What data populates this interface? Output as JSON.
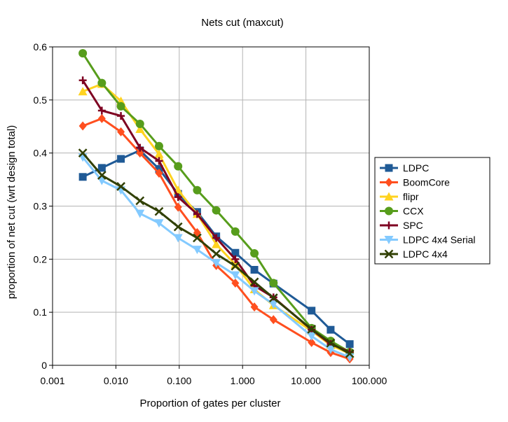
{
  "chart_data": {
    "type": "line",
    "title": "Nets cut (maxcut)",
    "xlabel": "Proportion of gates per cluster",
    "ylabel": "proportion of net cut (wrt design total)",
    "x_scale": "log",
    "xlim": [
      0.001,
      100
    ],
    "ylim": [
      0,
      0.6
    ],
    "x_ticks": [
      0.001,
      0.01,
      0.1,
      1,
      10,
      100
    ],
    "x_tick_labels": [
      "0.001",
      "0.010",
      "0.100",
      "1.000",
      "10.000",
      "100.000"
    ],
    "y_ticks": [
      0,
      0.1,
      0.2,
      0.3,
      0.4,
      0.5,
      0.6
    ],
    "y_tick_labels": [
      "0",
      "0.1",
      "0.2",
      "0.3",
      "0.4",
      "0.5",
      "0.6"
    ],
    "grid": true,
    "legend_position": "right",
    "series": [
      {
        "name": "LDPC",
        "color": "#1f5a96",
        "marker": "square",
        "x": [
          0.003,
          0.006,
          0.012,
          0.024,
          0.048,
          0.096,
          0.192,
          0.384,
          0.768,
          1.536,
          3.072,
          12.288,
          24.576,
          49.152
        ],
        "y": [
          0.355,
          0.372,
          0.389,
          0.405,
          0.37,
          0.323,
          0.289,
          0.243,
          0.212,
          0.18,
          0.154,
          0.103,
          0.067,
          0.04
        ]
      },
      {
        "name": "BoomCore",
        "color": "#ff4f1f",
        "marker": "diamond",
        "x": [
          0.003,
          0.006,
          0.012,
          0.024,
          0.048,
          0.096,
          0.192,
          0.384,
          0.768,
          1.536,
          3.072,
          12.288,
          24.576,
          49.152
        ],
        "y": [
          0.451,
          0.465,
          0.44,
          0.4,
          0.362,
          0.298,
          0.25,
          0.188,
          0.155,
          0.11,
          0.086,
          0.043,
          0.024,
          0.012
        ]
      },
      {
        "name": "flipr",
        "color": "#ffd320",
        "marker": "triangle",
        "x": [
          0.003,
          0.006,
          0.012,
          0.024,
          0.048,
          0.096,
          0.192,
          0.384,
          0.768,
          1.536,
          3.072,
          12.288,
          24.576,
          49.152
        ],
        "y": [
          0.516,
          0.53,
          0.498,
          0.445,
          0.398,
          0.33,
          0.285,
          0.228,
          0.19,
          0.143,
          0.113,
          0.065,
          0.038,
          0.022
        ]
      },
      {
        "name": "CCX",
        "color": "#579d1c",
        "marker": "circle",
        "x": [
          0.003,
          0.006,
          0.012,
          0.024,
          0.048,
          0.096,
          0.192,
          0.384,
          0.768,
          1.536,
          3.072,
          12.288,
          24.576,
          49.152
        ],
        "y": [
          0.588,
          0.532,
          0.488,
          0.455,
          0.413,
          0.375,
          0.33,
          0.292,
          0.252,
          0.211,
          0.155,
          0.07,
          0.046,
          0.025
        ]
      },
      {
        "name": "SPC",
        "color": "#7e0021",
        "marker": "plus",
        "x": [
          0.003,
          0.006,
          0.012,
          0.024,
          0.048,
          0.096,
          0.192,
          0.384,
          0.768,
          1.536,
          3.072,
          12.288,
          24.576,
          49.152
        ],
        "y": [
          0.537,
          0.48,
          0.47,
          0.41,
          0.385,
          0.317,
          0.285,
          0.24,
          0.2,
          0.15,
          0.128,
          0.067,
          0.04,
          0.025
        ]
      },
      {
        "name": "LDPC 4x4 Serial",
        "color": "#83caff",
        "marker": "down-triangle",
        "x": [
          0.003,
          0.006,
          0.012,
          0.024,
          0.048,
          0.096,
          0.192,
          0.384,
          0.768,
          1.536,
          3.072,
          12.288,
          24.576,
          49.152
        ],
        "y": [
          0.392,
          0.348,
          0.33,
          0.286,
          0.268,
          0.24,
          0.218,
          0.193,
          0.17,
          0.14,
          0.115,
          0.055,
          0.03,
          0.015
        ]
      },
      {
        "name": "LDPC 4x4",
        "color": "#314004",
        "marker": "x",
        "x": [
          0.003,
          0.006,
          0.012,
          0.024,
          0.048,
          0.096,
          0.192,
          0.384,
          0.768,
          1.536,
          3.072,
          12.288,
          24.576,
          49.152
        ],
        "y": [
          0.4,
          0.358,
          0.337,
          0.31,
          0.29,
          0.261,
          0.24,
          0.21,
          0.187,
          0.157,
          0.127,
          0.068,
          0.042,
          0.022
        ]
      }
    ]
  }
}
